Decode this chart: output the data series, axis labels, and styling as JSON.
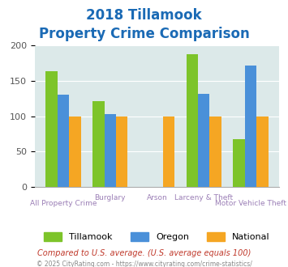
{
  "title_line1": "2018 Tillamook",
  "title_line2": "Property Crime Comparison",
  "categories": [
    "All Property Crime",
    "Burglary",
    "Arson",
    "Larceny & Theft",
    "Motor Vehicle Theft"
  ],
  "tillamook": [
    163,
    121,
    0,
    187,
    68
  ],
  "oregon": [
    130,
    103,
    0,
    131,
    172
  ],
  "national": [
    100,
    100,
    100,
    100,
    100
  ],
  "colors": {
    "tillamook": "#7dc42a",
    "oregon": "#4a90d9",
    "national": "#f5a623"
  },
  "ylim": [
    0,
    200
  ],
  "yticks": [
    0,
    50,
    100,
    150,
    200
  ],
  "title_color": "#1a6ab5",
  "xlabel_color": "#9b7fb6",
  "background_color": "#dce9e9",
  "legend_labels": [
    "Tillamook",
    "Oregon",
    "National"
  ],
  "footnote1": "Compared to U.S. average. (U.S. average equals 100)",
  "footnote2": "© 2025 CityRating.com - https://www.cityrating.com/crime-statistics/",
  "footnote1_color": "#c0392b",
  "footnote2_color": "#888888"
}
